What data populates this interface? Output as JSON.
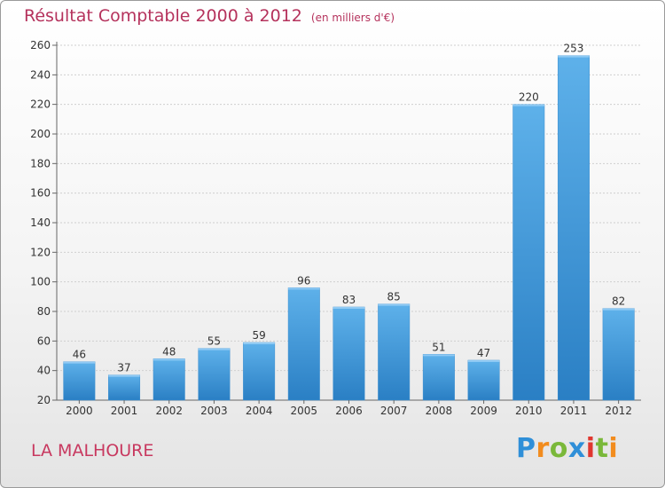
{
  "header": {
    "title": "Résultat Comptable 2000 à 2012",
    "subtitle": "(en milliers d'€)"
  },
  "footer": {
    "commune": "LA MALHOURE",
    "logo": {
      "letters": [
        "P",
        "r",
        "o",
        "x",
        "i",
        "t",
        "i"
      ],
      "colors": [
        "#2f8fd8",
        "#f28c1e",
        "#7ab83a",
        "#2f8fd8",
        "#e0372f",
        "#7ab83a",
        "#f28c1e"
      ]
    }
  },
  "chart_data": {
    "type": "bar",
    "title": "Résultat Comptable 2000 à 2012",
    "subtitle": "(en milliers d'€)",
    "categories": [
      "2000",
      "2001",
      "2002",
      "2003",
      "2004",
      "2005",
      "2006",
      "2007",
      "2008",
      "2009",
      "2010",
      "2011",
      "2012"
    ],
    "values": [
      46,
      37,
      48,
      55,
      59,
      96,
      83,
      85,
      51,
      47,
      220,
      253,
      82
    ],
    "data_labels": [
      "46",
      "37",
      "48",
      "55",
      "59",
      "96",
      "83",
      "85",
      "51",
      "47",
      "220",
      "253",
      "82"
    ],
    "xlabel": "",
    "ylabel": "",
    "ylim": [
      20,
      260
    ],
    "yticks": [
      20,
      40,
      60,
      80,
      100,
      120,
      140,
      160,
      180,
      200,
      220,
      240,
      260
    ],
    "ytick_labels": [
      "20",
      "40",
      "60",
      "80",
      "100",
      "120",
      "140",
      "160",
      "180",
      "200",
      "220",
      "240",
      "260"
    ],
    "grid": true,
    "bar_color_light": "#5eb1ea",
    "bar_color_dark": "#2a7fc4",
    "grid_color": "#cfcfcf"
  }
}
